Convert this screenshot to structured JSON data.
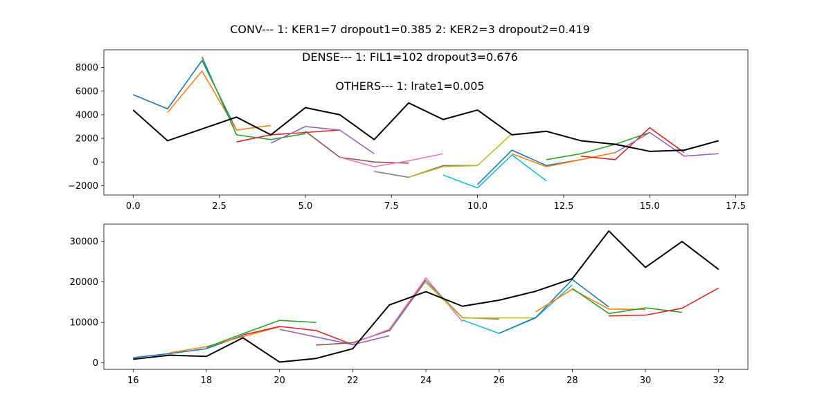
{
  "figure": {
    "suptitle": "CONV--- 1: KER1=7   dropout1=0.385   2: KER2=3   dropout2=0.419"
  },
  "colors": {
    "tab10": [
      "#1f77b4",
      "#ff7f0e",
      "#2ca02c",
      "#d62728",
      "#9467bd",
      "#8c564b",
      "#e377c2",
      "#7f7f7f",
      "#bcbd22",
      "#17becf"
    ],
    "actual": "#000000"
  },
  "chart_data": [
    {
      "type": "line",
      "title": "",
      "xlabel": "",
      "ylabel": "",
      "xlim": [
        -0.85,
        17.85
      ],
      "ylim": [
        -2800,
        9500
      ],
      "xticks": [
        0.0,
        2.5,
        5.0,
        7.5,
        10.0,
        12.5,
        15.0,
        17.5
      ],
      "xtick_labels": [
        "0.0",
        "2.5",
        "5.0",
        "7.5",
        "10.0",
        "12.5",
        "15.0",
        "17.5"
      ],
      "yticks": [
        -2000,
        0,
        2000,
        4000,
        6000,
        8000
      ],
      "ytick_labels": [
        "−2000",
        "0",
        "2000",
        "4000",
        "6000",
        "8000"
      ],
      "annotations": [
        "DENSE--- 1: FIL1=102   dropout3=0.676",
        "OTHERS--- 1: lrate1=0.005"
      ],
      "series": [
        {
          "x": [
            0,
            1,
            2,
            3
          ],
          "y": [
            5700,
            4500,
            8600,
            2700
          ]
        },
        {
          "x": [
            1,
            2,
            3,
            4
          ],
          "y": [
            4200,
            7700,
            2700,
            3100
          ]
        },
        {
          "x": [
            2,
            3,
            4,
            5
          ],
          "y": [
            8900,
            2300,
            1900,
            2400
          ]
        },
        {
          "x": [
            3,
            4,
            5,
            6
          ],
          "y": [
            1700,
            2300,
            2500,
            2700
          ]
        },
        {
          "x": [
            4,
            5,
            6,
            7
          ],
          "y": [
            1600,
            3000,
            2700,
            700
          ]
        },
        {
          "x": [
            5,
            6,
            7,
            8
          ],
          "y": [
            2600,
            400,
            0,
            -100
          ]
        },
        {
          "x": [
            6,
            7,
            8,
            9
          ],
          "y": [
            400,
            -400,
            100,
            700
          ]
        },
        {
          "x": [
            7,
            8,
            9,
            10
          ],
          "y": [
            -800,
            -1300,
            -300,
            -300
          ]
        },
        {
          "x": [
            8,
            9,
            10,
            11
          ],
          "y": [
            -1300,
            -400,
            -300,
            2400
          ]
        },
        {
          "x": [
            9,
            10,
            11,
            12
          ],
          "y": [
            -1100,
            -2200,
            600,
            -1600
          ]
        },
        {
          "x": [
            10,
            11,
            12,
            13
          ],
          "y": [
            -1900,
            1000,
            -300,
            200
          ]
        },
        {
          "x": [
            11,
            12,
            13,
            14
          ],
          "y": [
            700,
            -400,
            200,
            800
          ]
        },
        {
          "x": [
            12,
            13,
            14,
            15
          ],
          "y": [
            200,
            700,
            1500,
            2500
          ]
        },
        {
          "x": [
            13,
            14,
            15,
            16
          ],
          "y": [
            500,
            200,
            2900,
            800
          ]
        },
        {
          "x": [
            14,
            15,
            16,
            17
          ],
          "y": [
            800,
            2500,
            500,
            700
          ]
        }
      ],
      "actual": {
        "x": [
          0,
          1,
          2,
          3,
          4,
          5,
          6,
          7,
          8,
          9,
          10,
          11,
          12,
          13,
          14,
          15,
          16,
          17
        ],
        "y": [
          4400,
          1800,
          2800,
          3800,
          2300,
          4600,
          4000,
          1900,
          5000,
          3600,
          4400,
          2300,
          2600,
          1800,
          1500,
          900,
          1000,
          1800
        ]
      }
    },
    {
      "type": "line",
      "title": "",
      "xlabel": "",
      "ylabel": "",
      "xlim": [
        15.2,
        32.8
      ],
      "ylim": [
        -1600,
        34300
      ],
      "xticks": [
        16,
        18,
        20,
        22,
        24,
        26,
        28,
        30,
        32
      ],
      "xtick_labels": [
        "16",
        "18",
        "20",
        "22",
        "24",
        "26",
        "28",
        "30",
        "32"
      ],
      "yticks": [
        0,
        10000,
        20000,
        30000
      ],
      "ytick_labels": [
        "0",
        "10000",
        "20000",
        "30000"
      ],
      "annotations": [],
      "series": [
        {
          "x": [
            16,
            17,
            18,
            19
          ],
          "y": [
            1300,
            2300,
            3500,
            6800
          ]
        },
        {
          "x": [
            17,
            18,
            19,
            20
          ],
          "y": [
            2500,
            4000,
            6500,
            8900
          ]
        },
        {
          "x": [
            18,
            19,
            20,
            21
          ],
          "y": [
            3800,
            7200,
            10500,
            10000
          ]
        },
        {
          "x": [
            19,
            20,
            21,
            22
          ],
          "y": [
            6900,
            9000,
            8000,
            4500
          ]
        },
        {
          "x": [
            20,
            21,
            22,
            23
          ],
          "y": [
            8300,
            6400,
            4500,
            6700
          ]
        },
        {
          "x": [
            21,
            22,
            23,
            24
          ],
          "y": [
            4400,
            5000,
            8000,
            20500
          ]
        },
        {
          "x": [
            22,
            23,
            24,
            25
          ],
          "y": [
            4800,
            8300,
            21000,
            10200
          ]
        },
        {
          "x": [
            23,
            24,
            25,
            26
          ],
          "y": [
            7800,
            20300,
            11200,
            10800
          ]
        },
        {
          "x": [
            24,
            25,
            26,
            27
          ],
          "y": [
            19800,
            11100,
            11100,
            11100
          ]
        },
        {
          "x": [
            25,
            26,
            27,
            28
          ],
          "y": [
            10600,
            7300,
            11100,
            19300
          ]
        },
        {
          "x": [
            26,
            27,
            28,
            29
          ],
          "y": [
            7300,
            11200,
            20600,
            13800
          ]
        },
        {
          "x": [
            27,
            28,
            29,
            30
          ],
          "y": [
            12600,
            18200,
            13300,
            13200
          ]
        },
        {
          "x": [
            28,
            29,
            30,
            31
          ],
          "y": [
            18400,
            12200,
            13600,
            12500
          ]
        },
        {
          "x": [
            29,
            30,
            31,
            32
          ],
          "y": [
            11600,
            11800,
            13500,
            18500
          ]
        }
      ],
      "actual": {
        "x": [
          16,
          17,
          18,
          19,
          20,
          21,
          22,
          23,
          24,
          25,
          26,
          27,
          28,
          29,
          30,
          31,
          32
        ],
        "y": [
          900,
          1900,
          1600,
          6200,
          200,
          1100,
          3500,
          14300,
          17600,
          14000,
          15500,
          17700,
          20800,
          32600,
          23600,
          30000,
          23100
        ]
      }
    }
  ]
}
